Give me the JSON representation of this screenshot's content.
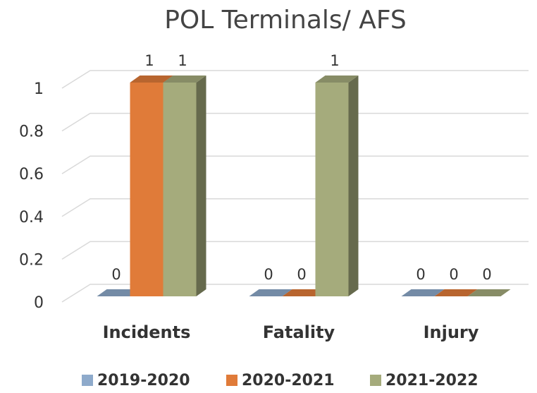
{
  "chart_data": {
    "type": "bar",
    "title": "POL Terminals/ AFS",
    "categories": [
      "Incidents",
      "Fatality",
      "Injury"
    ],
    "series": [
      {
        "name": "2019-2020",
        "color": "#8eaacb",
        "values": [
          0,
          0,
          0
        ]
      },
      {
        "name": "2020-2021",
        "color": "#e07b39",
        "values": [
          1,
          0,
          0
        ]
      },
      {
        "name": "2021-2022",
        "color": "#a5ab7c",
        "values": [
          1,
          1,
          0
        ]
      }
    ],
    "ylim": [
      0,
      1
    ],
    "yticks": [
      0,
      0.2,
      0.4,
      0.6,
      0.8,
      1
    ],
    "grid": true,
    "data_labels": true,
    "legend": "bottom"
  }
}
